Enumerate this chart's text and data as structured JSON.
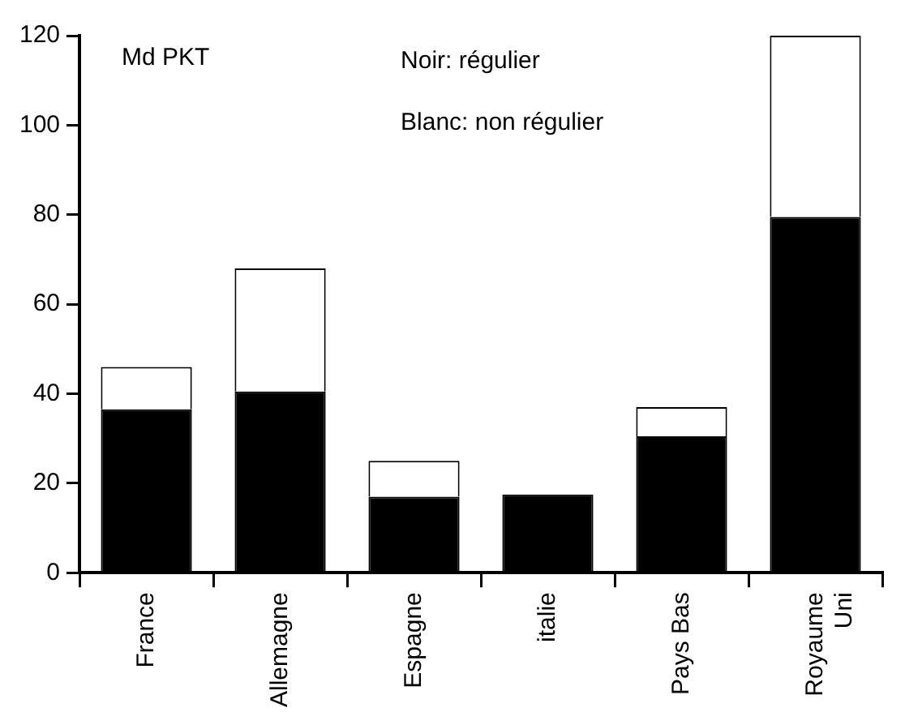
{
  "chart_data": {
    "type": "bar",
    "ylabel": "Md PKT",
    "annotations": [
      "Noir: régulier",
      "Blanc: non régulier"
    ],
    "categories": [
      "France",
      "Allemagne",
      "Espagne",
      "italie",
      "Pays Bas",
      "Royaume Uni"
    ],
    "series": [
      {
        "color": "#000000",
        "values": [
          36.5,
          40.5,
          17,
          17.5,
          30.5,
          79.5
        ]
      },
      {
        "color": "#ffffff",
        "values": [
          9.5,
          27.5,
          8,
          null,
          6.5,
          40.5
        ]
      }
    ],
    "stacked": true,
    "ylim": [
      0,
      120
    ],
    "yticks": [
      0,
      20,
      40,
      60,
      80,
      100,
      120
    ],
    "grid": false,
    "legend": false
  }
}
